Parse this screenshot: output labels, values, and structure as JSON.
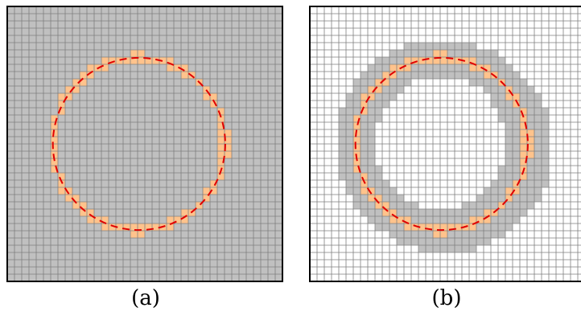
{
  "captions": {
    "a": "(a)",
    "b": "(b)"
  },
  "colors": {
    "grid_fill_a": "#c0c0c0",
    "grid_line_a": "#7f7f7f",
    "grid_fill_b": "#ffffff",
    "grid_line_b": "#7f7f7f",
    "band_cells": "#c0c0c0",
    "interface_cells": "#ffc38c",
    "curve": "#e00000",
    "border": "#000000"
  },
  "grid": {
    "cells_per_side": 38
  },
  "interface_cells_description_count": 0
}
